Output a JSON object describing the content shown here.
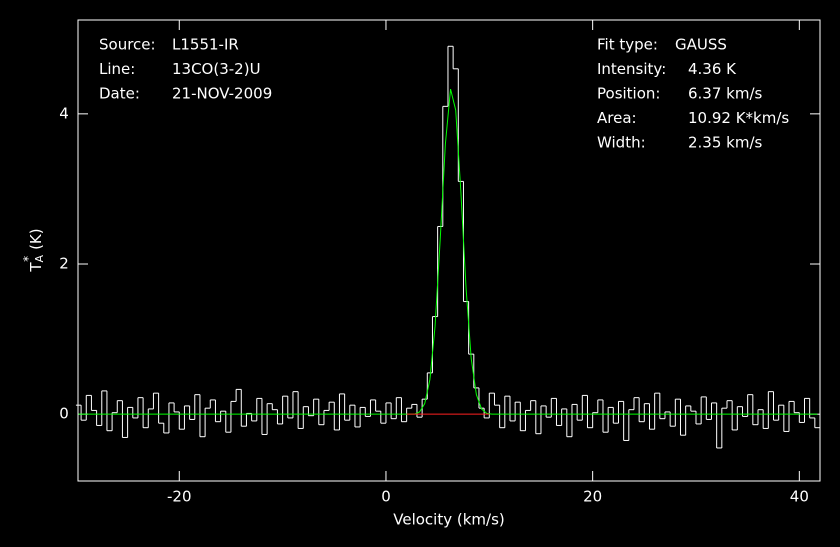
{
  "chart_data": {
    "type": "line",
    "xlabel": "Velocity (km/s)",
    "ylabel": {
      "main": "T",
      "sub": "A",
      "sup": "*",
      "unit": "(K)"
    },
    "annotations": {
      "left": [
        [
          "Source:",
          "L1551-IR"
        ],
        [
          "Line:",
          "13CO(3-2)U"
        ],
        [
          "Date:",
          "21-NOV-2009"
        ]
      ],
      "right": [
        [
          "Fit type:",
          "GAUSS"
        ],
        [
          "Intensity:",
          "4.36 K"
        ],
        [
          "Position:",
          "6.37 km/s"
        ],
        [
          "Area:",
          "10.92 K*km/s"
        ],
        [
          "Width:",
          "2.35 km/s"
        ]
      ]
    },
    "xlim": [
      -29.8,
      42
    ],
    "ylim": [
      -0.89,
      5.25
    ],
    "xticks": [
      -20,
      0,
      20,
      40
    ],
    "yticks": [
      0,
      2,
      4
    ],
    "x": [
      -29.75,
      -29.25,
      -28.75,
      -28.25,
      -27.75,
      -27.25,
      -26.75,
      -26.25,
      -25.75,
      -25.25,
      -24.75,
      -24.25,
      -23.75,
      -23.25,
      -22.75,
      -22.25,
      -21.75,
      -21.25,
      -20.75,
      -20.25,
      -19.75,
      -19.25,
      -18.75,
      -18.25,
      -17.75,
      -17.25,
      -16.75,
      -16.25,
      -15.75,
      -15.25,
      -14.75,
      -14.25,
      -13.75,
      -13.25,
      -12.75,
      -12.25,
      -11.75,
      -11.25,
      -10.75,
      -10.25,
      -9.75,
      -9.25,
      -8.75,
      -8.25,
      -7.75,
      -7.25,
      -6.75,
      -6.25,
      -5.75,
      -5.25,
      -4.75,
      -4.25,
      -3.75,
      -3.25,
      -2.75,
      -2.25,
      -1.75,
      -1.25,
      -0.75,
      -0.25,
      0.25,
      0.75,
      1.25,
      1.75,
      2.25,
      2.75,
      3.25,
      3.75,
      4.25,
      4.75,
      5.25,
      5.75,
      6.25,
      6.75,
      7.25,
      7.75,
      8.25,
      8.75,
      9.25,
      9.75,
      10.25,
      10.75,
      11.25,
      11.75,
      12.25,
      12.75,
      13.25,
      13.75,
      14.25,
      14.75,
      15.25,
      15.75,
      16.25,
      16.75,
      17.25,
      17.75,
      18.25,
      18.75,
      19.25,
      19.75,
      20.25,
      20.75,
      21.25,
      21.75,
      22.25,
      22.75,
      23.25,
      23.75,
      24.25,
      24.75,
      25.25,
      25.75,
      26.25,
      26.75,
      27.25,
      27.75,
      28.25,
      28.75,
      29.25,
      29.75,
      30.25,
      30.75,
      31.25,
      31.75,
      32.25,
      32.75,
      33.25,
      33.75,
      34.25,
      34.75,
      35.25,
      35.75,
      36.25,
      36.75,
      37.25,
      37.75,
      38.25,
      38.75,
      39.25,
      39.75,
      40.25,
      40.75,
      41.25,
      41.75
    ],
    "series": [
      {
        "color": "#ffffff",
        "style": "steps",
        "values": [
          0.12,
          -0.08,
          0.25,
          0.05,
          -0.15,
          0.31,
          -0.22,
          0.02,
          0.18,
          -0.31,
          0.09,
          -0.05,
          0.22,
          -0.18,
          0.07,
          0.28,
          -0.12,
          -0.25,
          0.15,
          0.03,
          -0.2,
          0.11,
          -0.07,
          0.26,
          -0.3,
          0.08,
          0.19,
          -0.1,
          0.04,
          -0.24,
          0.17,
          0.33,
          -0.16,
          0.01,
          -0.09,
          0.21,
          -0.27,
          0.14,
          0.06,
          -0.13,
          0.24,
          -0.05,
          0.3,
          -0.19,
          0.1,
          -0.02,
          0.2,
          -0.14,
          0.05,
          0.16,
          -0.21,
          0.27,
          -0.08,
          0.12,
          -0.17,
          0.09,
          -0.03,
          0.19,
          0.04,
          -0.12,
          0.15,
          -0.06,
          0.22,
          -0.1,
          0.08,
          0.13,
          -0.04,
          0.2,
          0.55,
          1.3,
          2.5,
          4.1,
          4.9,
          4.6,
          3.1,
          1.5,
          0.8,
          0.35,
          0.08,
          -0.05,
          0.28,
          0.12,
          -0.18,
          0.24,
          -0.09,
          0.16,
          -0.22,
          0.05,
          0.18,
          -0.26,
          0.11,
          -0.04,
          0.21,
          -0.15,
          0.07,
          -0.3,
          0.13,
          -0.08,
          0.25,
          -0.18,
          0.02,
          0.19,
          -0.24,
          0.09,
          -0.12,
          0.17,
          -0.35,
          0.06,
          0.22,
          -0.1,
          0.14,
          -0.2,
          0.28,
          -0.06,
          0.03,
          -0.16,
          0.2,
          -0.28,
          0.11,
          0.04,
          -0.13,
          0.23,
          -0.07,
          0.15,
          -0.45,
          0.08,
          0.18,
          -0.21,
          0.1,
          -0.03,
          0.26,
          -0.14,
          0.06,
          -0.19,
          0.3,
          -0.08,
          0.12,
          -0.23,
          0.17,
          0.02,
          -0.11,
          0.21,
          -0.05,
          -0.18
        ]
      },
      {
        "color": "#00ff00",
        "style": "line",
        "values": [
          0,
          0,
          0,
          0,
          0,
          0,
          0,
          0,
          0,
          0,
          0,
          0,
          0,
          0,
          0,
          0,
          0,
          0,
          0,
          0,
          0,
          0,
          0,
          0,
          0,
          0,
          0,
          0,
          0,
          0,
          0,
          0,
          0,
          0,
          0,
          0,
          0,
          0,
          0,
          0,
          0,
          0,
          0,
          0,
          0,
          0,
          0,
          0,
          0,
          0,
          0,
          0,
          0,
          0,
          0,
          0,
          0,
          0,
          0,
          0,
          0,
          0,
          0,
          0,
          0,
          0,
          0.03,
          0.14,
          0.46,
          1.17,
          2.33,
          3.6,
          4.33,
          4.05,
          2.96,
          1.68,
          0.74,
          0.26,
          0.07,
          0.01,
          0,
          0,
          0,
          0,
          0,
          0,
          0,
          0,
          0,
          0,
          0,
          0,
          0,
          0,
          0,
          0,
          0,
          0,
          0,
          0,
          0,
          0,
          0,
          0,
          0,
          0,
          0,
          0,
          0,
          0,
          0,
          0,
          0,
          0,
          0,
          0,
          0,
          0,
          0,
          0,
          0,
          0,
          0,
          0,
          0,
          0,
          0,
          0,
          0,
          0,
          0,
          0,
          0,
          0,
          0,
          0,
          0,
          0,
          0,
          0,
          0,
          0,
          0,
          0
        ]
      },
      {
        "color": "#ff2020",
        "style": "line",
        "x": [
          2,
          10
        ],
        "values": [
          0,
          0
        ]
      }
    ]
  }
}
